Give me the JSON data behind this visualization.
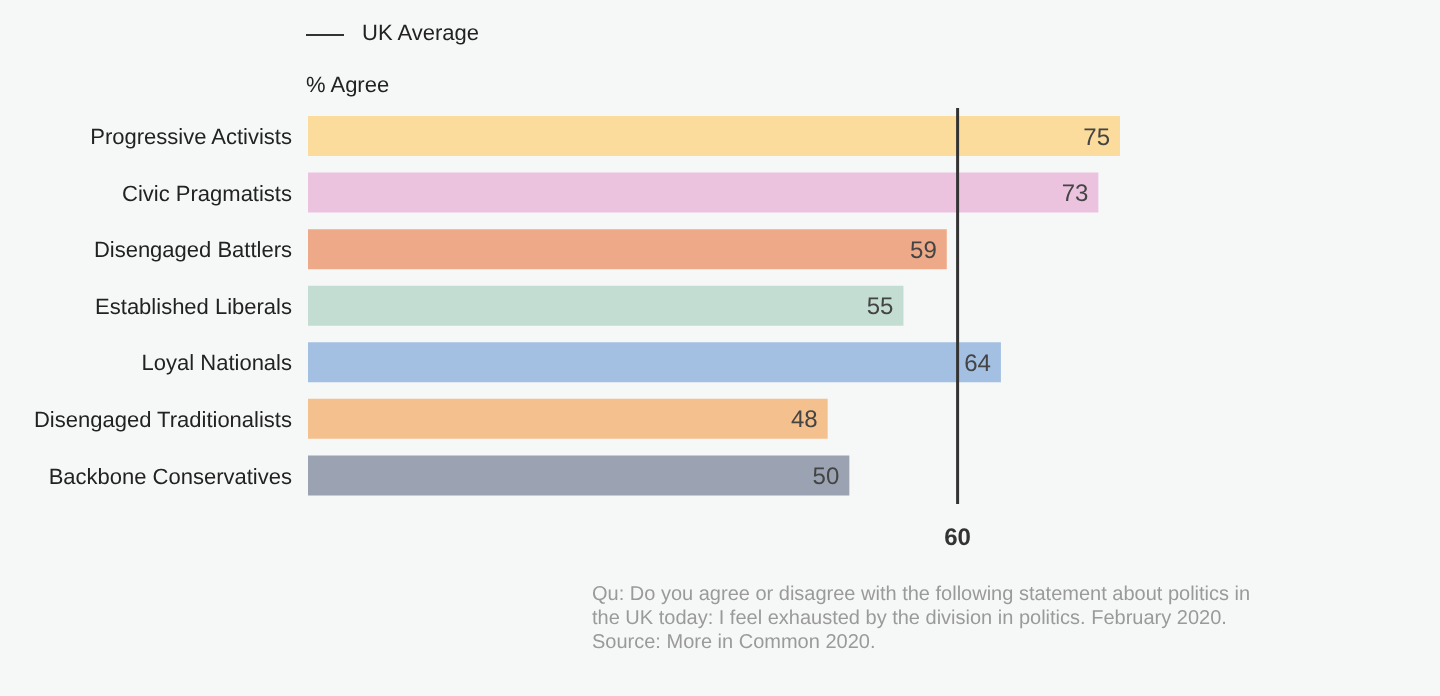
{
  "chart_data": {
    "type": "bar",
    "orientation": "horizontal",
    "xlabel": "% Agree",
    "categories": [
      "Progressive Activists",
      "Civic Pragmatists",
      "Disengaged Battlers",
      "Established Liberals",
      "Loyal Nationals",
      "Disengaged Traditionalists",
      "Backbone Conservatives"
    ],
    "values": [
      75,
      73,
      59,
      55,
      64,
      48,
      50
    ],
    "colors": [
      "#fcdc9c",
      "#ecc3df",
      "#eeaa88",
      "#c3ddd3",
      "#a3bfe2",
      "#f4c08d",
      "#9ba2b2"
    ],
    "data_labels": true,
    "grid": false,
    "legend": "top left",
    "ref_lines": [
      {
        "axis": "x",
        "value": 60,
        "label": "UK Average",
        "color": "#333333"
      }
    ],
    "annotations": [
      "60",
      "Qu: Do you agree or disagree with the following statement about politics in the UK today: I feel exhausted by the division in politics. February 2020.",
      "Source: More in Common 2020."
    ]
  }
}
